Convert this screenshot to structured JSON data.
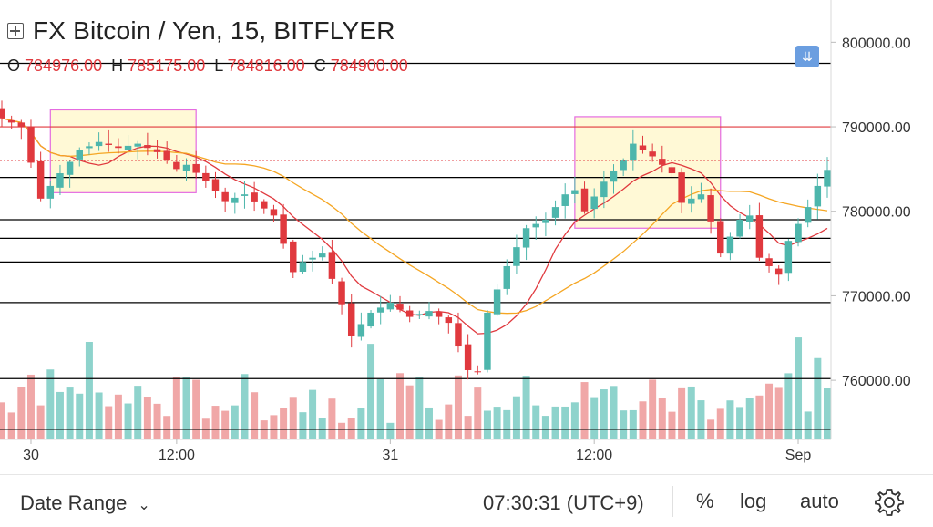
{
  "header": {
    "title": "FX Bitcoin / Yen, 15, BITFLYER",
    "ohlc": [
      {
        "key": "O",
        "value": "784976.00"
      },
      {
        "key": "H",
        "value": "785175.00"
      },
      {
        "key": "L",
        "value": "784816.00"
      },
      {
        "key": "C",
        "value": "784900.00"
      }
    ]
  },
  "bottom_bar": {
    "date_range_label": "Date Range",
    "time_text": "07:30:31 (UTC+9)",
    "percent_label": "%",
    "log_label": "log",
    "auto_label": "auto"
  },
  "colors": {
    "up": "#4db6ac",
    "down": "#e0393e",
    "volume_up": "#8ed3cc",
    "volume_down": "#f0a7a7",
    "ma_fast": "#e0393e",
    "ma_slow": "#f5a623",
    "highlight_fill": "#fff9d6",
    "highlight_border": "#e46be0"
  },
  "chart_data": {
    "type": "candlestick",
    "ylim": [
      753000,
      805000
    ],
    "y_ticks": [
      "800000.00",
      "790000.00",
      "780000.00",
      "770000.00",
      "760000.00"
    ],
    "y_tick_values": [
      800000,
      790000,
      780000,
      770000,
      760000
    ],
    "x_ticks": [
      {
        "label": "30",
        "index": 3
      },
      {
        "label": "12:00",
        "index": 18
      },
      {
        "label": "31",
        "index": 40
      },
      {
        "label": "12:00",
        "index": 61
      },
      {
        "label": "Sep",
        "index": 82
      }
    ],
    "bars_count": 86,
    "horizontal_levels": [
      {
        "value": 797500,
        "color": "#000000"
      },
      {
        "value": 790000,
        "color": "#e0393e"
      },
      {
        "value": 784000,
        "color": "#000000"
      },
      {
        "value": 779000,
        "color": "#000000"
      },
      {
        "value": 776800,
        "color": "#000000"
      },
      {
        "value": 774000,
        "color": "#000000"
      },
      {
        "value": 769200,
        "color": "#000000"
      },
      {
        "value": 760200,
        "color": "#000000"
      },
      {
        "value": 754200,
        "color": "#000000"
      }
    ],
    "highlight_boxes": [
      {
        "from_index": 5,
        "to_index": 20,
        "top": 792000,
        "bottom": 782200
      },
      {
        "from_index": 59,
        "to_index": 74,
        "top": 791200,
        "bottom": 778000
      }
    ],
    "anchor_closes": [
      [
        0,
        791000
      ],
      [
        2,
        790000
      ],
      [
        4,
        781500
      ],
      [
        6,
        784500
      ],
      [
        8,
        787200
      ],
      [
        10,
        788200
      ],
      [
        12,
        787500
      ],
      [
        14,
        788000
      ],
      [
        16,
        787000
      ],
      [
        18,
        785000
      ],
      [
        19,
        785500
      ],
      [
        21,
        783600
      ],
      [
        23,
        781200
      ],
      [
        25,
        782000
      ],
      [
        28,
        779500
      ],
      [
        30,
        772800
      ],
      [
        31,
        774000
      ],
      [
        33,
        775000
      ],
      [
        35,
        769000
      ],
      [
        36,
        765300
      ],
      [
        38,
        768000
      ],
      [
        40,
        769200
      ],
      [
        42,
        767500
      ],
      [
        44,
        768200
      ],
      [
        46,
        766800
      ],
      [
        48,
        761200
      ],
      [
        49,
        761000
      ],
      [
        50,
        768000
      ],
      [
        52,
        773500
      ],
      [
        54,
        778000
      ],
      [
        56,
        779000
      ],
      [
        58,
        782000
      ],
      [
        59,
        782500
      ],
      [
        60,
        780000
      ],
      [
        62,
        783500
      ],
      [
        64,
        786000
      ],
      [
        65,
        788000
      ],
      [
        67,
        786500
      ],
      [
        69,
        784500
      ],
      [
        70,
        781000
      ],
      [
        72,
        782000
      ],
      [
        73,
        778800
      ],
      [
        74,
        775000
      ],
      [
        76,
        779000
      ],
      [
        77,
        779500
      ],
      [
        78,
        774500
      ],
      [
        80,
        772500
      ],
      [
        81,
        776500
      ],
      [
        83,
        780500
      ],
      [
        84,
        783000
      ],
      [
        85,
        784900
      ]
    ]
  }
}
